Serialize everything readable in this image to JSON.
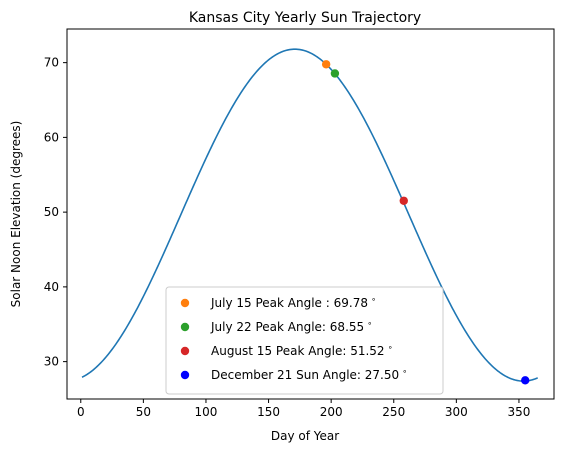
{
  "chart_data": {
    "type": "line",
    "title": "Kansas City Yearly Sun Trajectory",
    "xlabel": "Day of Year",
    "ylabel": "Solar Noon Elevation (degrees)",
    "xlim": [
      -11,
      378
    ],
    "ylim": [
      25,
      74.5
    ],
    "xticks": [
      0,
      50,
      100,
      150,
      200,
      250,
      300,
      350
    ],
    "yticks": [
      30,
      40,
      50,
      60,
      70
    ],
    "grid": false,
    "legend_position": "lower-center",
    "line": {
      "name": "",
      "color": "#1f77b4",
      "x_range": [
        1,
        365
      ],
      "model": {
        "offset": 49.6,
        "amplitude": 22.2,
        "peak_day": 171,
        "period": 365
      }
    },
    "points": [
      {
        "label": "July 15 Peak Angle : 69.78$^\\circ$",
        "display_label": "July 15 Peak Angle : 69.78",
        "x": 196,
        "y": 69.78,
        "color": "#ff7f0e"
      },
      {
        "label": "July 22 Peak Angle: 68.55",
        "display_label": "July 22 Peak Angle: 68.55",
        "x": 203,
        "y": 68.55,
        "color": "#2ca02c"
      },
      {
        "label": "August 15 Peak Angle: 51.52",
        "display_label": "August 15 Peak Angle: 51.52",
        "x": 258,
        "y": 51.52,
        "color": "#d62728"
      },
      {
        "label": "December 21 Sun Angle: 27.50",
        "display_label": "December 21 Sun Angle: 27.50",
        "x": 355,
        "y": 27.5,
        "color": "#0000ff"
      }
    ],
    "degree_symbol": "∘"
  }
}
